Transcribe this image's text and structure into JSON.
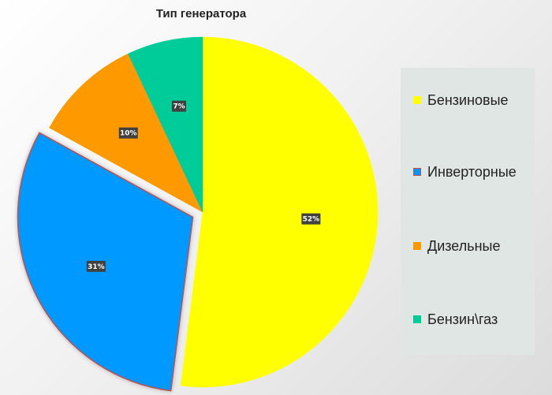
{
  "chart_data": {
    "type": "pie",
    "title": "Тип генератора",
    "categories": [
      "Бензиновые",
      "Инверторные",
      "Дизельные",
      "Бензин\\газ"
    ],
    "values": [
      52,
      31,
      10,
      7
    ],
    "data_labels": [
      "52%",
      "31%",
      "10%",
      "7%"
    ],
    "colors": [
      "#ffff00",
      "#0099ff",
      "#ff9900",
      "#00cc99"
    ],
    "exploded_slice": "Инверторные",
    "start_angle_deg": 0,
    "direction": "clockwise",
    "legend_position": "right"
  }
}
